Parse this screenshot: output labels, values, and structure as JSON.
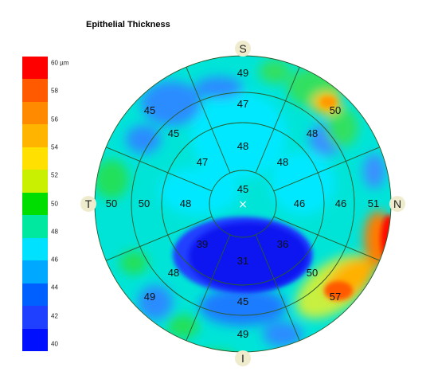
{
  "title": "Epithelial Thickness",
  "scale": {
    "labels": [
      "60 µm",
      "58",
      "56",
      "54",
      "52",
      "50",
      "48",
      "46",
      "44",
      "42",
      "40"
    ],
    "colors": [
      "#ff0000",
      "#ff5a00",
      "#ff8a00",
      "#ffb400",
      "#ffe000",
      "#c8f000",
      "#00dd00",
      "#00e8a0",
      "#00e0ff",
      "#00a8ff",
      "#0060ff",
      "#2040ff",
      "#0010ff"
    ]
  },
  "directions": {
    "superior": "S",
    "inferior": "I",
    "temporal": "T",
    "nasal": "N"
  },
  "center_mark": "×",
  "zones": {
    "center": "45",
    "inner": {
      "S": "48",
      "SN": "48",
      "N": "46",
      "IN": "36",
      "I": "31",
      "IT": "39",
      "T": "48",
      "ST": "47"
    },
    "middle": {
      "S": "47",
      "SN": "48",
      "N": "46",
      "IN": "50",
      "I": "45",
      "IT": "48",
      "T": "50",
      "ST": "45"
    },
    "outer": {
      "S": "49",
      "SN": "50",
      "N": "51",
      "IN": "57",
      "I": "49",
      "IT": "49",
      "T": "50",
      "ST": "45"
    }
  }
}
